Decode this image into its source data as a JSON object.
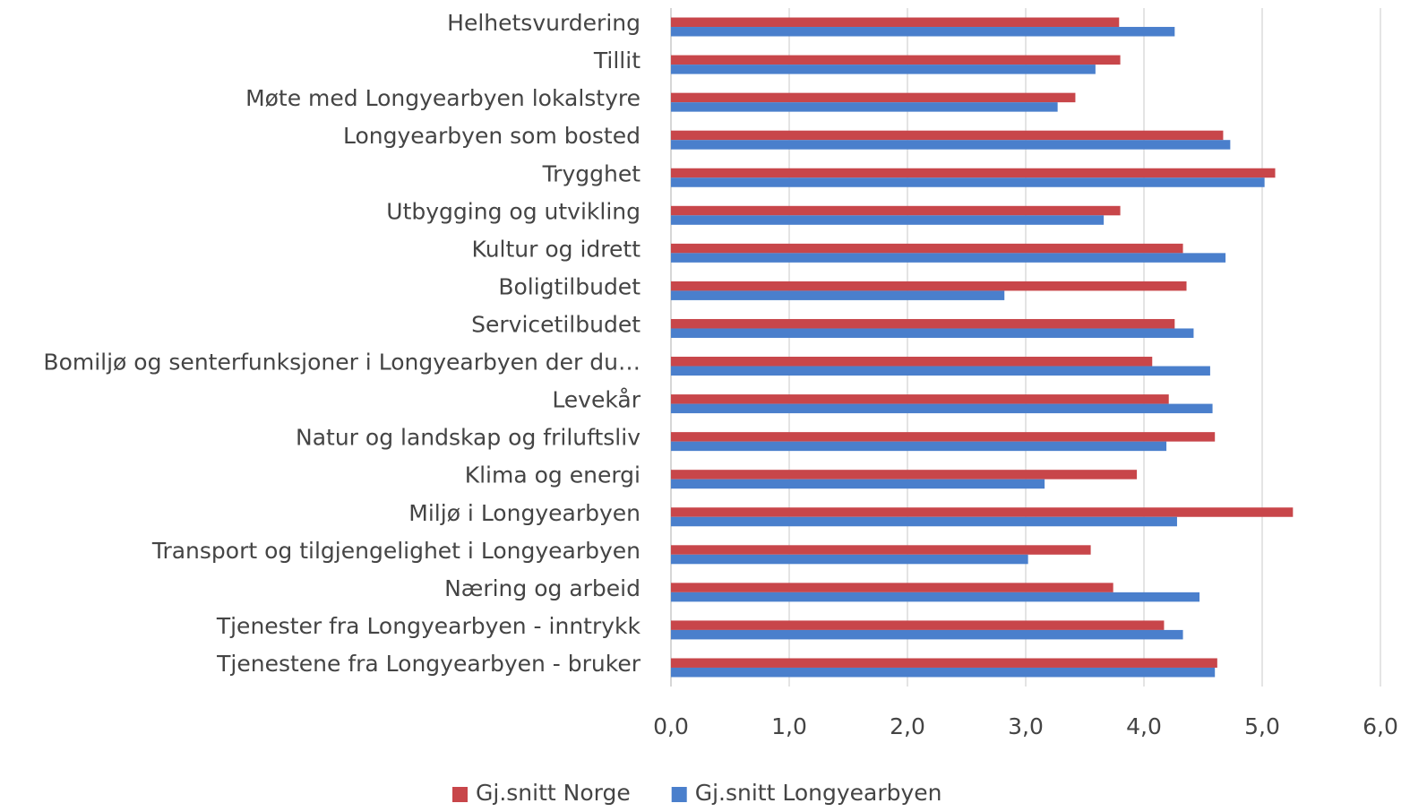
{
  "chart_data": {
    "type": "hbar",
    "categories": [
      "Helhetsvurdering",
      "Tillit",
      "Møte med Longyearbyen lokalstyre",
      "Longyearbyen som bosted",
      "Trygghet",
      "Utbygging og utvikling",
      "Kultur og idrett",
      "Boligtilbudet",
      "Servicetilbudet",
      "Bomiljø og senterfunksjoner i Longyearbyen der du…",
      "Levekår",
      "Natur og landskap og friluftsliv",
      "Klima og energi",
      "Miljø i Longyearbyen",
      "Transport og tilgjengelighet i Longyearbyen",
      "Næring og arbeid",
      "Tjenester fra Longyearbyen - inntrykk",
      "Tjenestene fra Longyearbyen - bruker"
    ],
    "series": [
      {
        "name": "Gj.snitt Norge",
        "color": "#c8464a",
        "values": [
          3.79,
          3.8,
          3.42,
          4.67,
          5.11,
          3.8,
          4.33,
          4.36,
          4.26,
          4.07,
          4.21,
          4.6,
          3.94,
          5.26,
          3.55,
          3.74,
          4.17,
          4.62
        ]
      },
      {
        "name": "Gj.snitt Longyearbyen",
        "color": "#4a7fcc",
        "values": [
          4.26,
          3.59,
          3.27,
          4.73,
          5.02,
          3.66,
          4.69,
          2.82,
          4.42,
          4.56,
          4.58,
          4.19,
          3.16,
          4.28,
          3.02,
          4.47,
          4.33,
          4.6
        ]
      }
    ],
    "xlim": [
      0,
      6
    ],
    "xticks": [
      {
        "value": 0,
        "label": "0,0"
      },
      {
        "value": 1,
        "label": "1,0"
      },
      {
        "value": 2,
        "label": "2,0"
      },
      {
        "value": 3,
        "label": "3,0"
      },
      {
        "value": 4,
        "label": "4,0"
      },
      {
        "value": 5,
        "label": "5,0"
      },
      {
        "value": 6,
        "label": "6,0"
      }
    ],
    "grid": true,
    "legend": "bottom"
  }
}
